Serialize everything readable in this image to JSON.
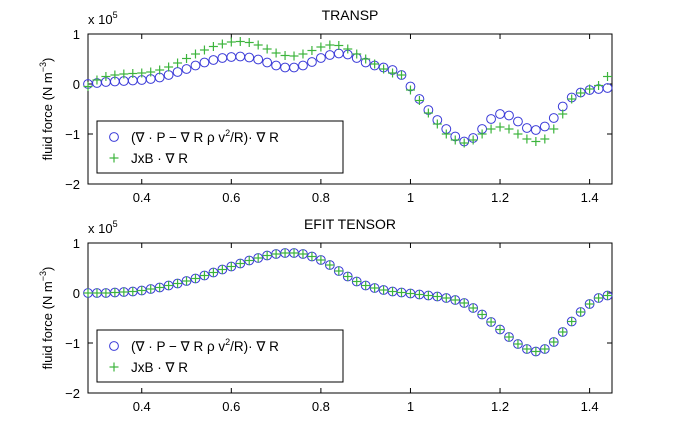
{
  "colors": {
    "circle": "#3a3ad8",
    "plus": "#3cb43c",
    "axis": "#000000",
    "background": "#ffffff"
  },
  "chart_data": [
    {
      "type": "scatter",
      "title": "TRANSP",
      "xlabel": "",
      "ylabel": "fluid force (N m",
      "ylabel_sup": "−3",
      "ylabel_close": ")",
      "scale_label": "x 10",
      "scale_exp": "5",
      "xlim": [
        0.28,
        1.45
      ],
      "ylim": [
        -2,
        1
      ],
      "xticks": [
        0.4,
        0.6,
        0.8,
        1,
        1.2,
        1.4
      ],
      "xtick_labels": [
        "0.4",
        "0.6",
        "0.8",
        "1",
        "1.2",
        "1.4"
      ],
      "yticks": [
        1,
        0,
        -1,
        -2
      ],
      "ytick_labels": [
        "1",
        "0",
        "−1",
        "−2"
      ],
      "legend_position": "bottom-left",
      "series": [
        {
          "name": "(∇ · P − ∇ R ρ v²/R)· ∇ R",
          "legend_main": "(∇ · P − ∇ R ρ v",
          "legend_sup": "2",
          "legend_tail": "/R)· ∇ R",
          "marker": "circle",
          "points": [
            [
              0.28,
              0.0
            ],
            [
              0.3,
              0.02
            ],
            [
              0.32,
              0.04
            ],
            [
              0.34,
              0.05
            ],
            [
              0.36,
              0.06
            ],
            [
              0.38,
              0.07
            ],
            [
              0.4,
              0.08
            ],
            [
              0.42,
              0.1
            ],
            [
              0.44,
              0.13
            ],
            [
              0.46,
              0.18
            ],
            [
              0.48,
              0.24
            ],
            [
              0.5,
              0.3
            ],
            [
              0.52,
              0.37
            ],
            [
              0.54,
              0.43
            ],
            [
              0.56,
              0.48
            ],
            [
              0.58,
              0.52
            ],
            [
              0.6,
              0.54
            ],
            [
              0.62,
              0.55
            ],
            [
              0.64,
              0.53
            ],
            [
              0.66,
              0.49
            ],
            [
              0.68,
              0.43
            ],
            [
              0.7,
              0.37
            ],
            [
              0.72,
              0.33
            ],
            [
              0.74,
              0.33
            ],
            [
              0.76,
              0.37
            ],
            [
              0.78,
              0.44
            ],
            [
              0.8,
              0.52
            ],
            [
              0.82,
              0.58
            ],
            [
              0.84,
              0.61
            ],
            [
              0.86,
              0.59
            ],
            [
              0.88,
              0.52
            ],
            [
              0.9,
              0.43
            ],
            [
              0.92,
              0.37
            ],
            [
              0.94,
              0.33
            ],
            [
              0.96,
              0.28
            ],
            [
              0.98,
              0.18
            ],
            [
              1.0,
              -0.05
            ],
            [
              1.02,
              -0.3
            ],
            [
              1.04,
              -0.52
            ],
            [
              1.06,
              -0.72
            ],
            [
              1.08,
              -0.9
            ],
            [
              1.1,
              -1.05
            ],
            [
              1.12,
              -1.15
            ],
            [
              1.14,
              -1.08
            ],
            [
              1.16,
              -0.9
            ],
            [
              1.18,
              -0.7
            ],
            [
              1.2,
              -0.6
            ],
            [
              1.22,
              -0.63
            ],
            [
              1.24,
              -0.75
            ],
            [
              1.26,
              -0.88
            ],
            [
              1.28,
              -0.92
            ],
            [
              1.3,
              -0.85
            ],
            [
              1.32,
              -0.68
            ],
            [
              1.34,
              -0.45
            ],
            [
              1.36,
              -0.27
            ],
            [
              1.38,
              -0.17
            ],
            [
              1.4,
              -0.12
            ],
            [
              1.42,
              -0.1
            ],
            [
              1.44,
              -0.08
            ]
          ]
        },
        {
          "name": "JxB · ∇ R",
          "legend_main": "JxB · ∇ R",
          "legend_sup": "",
          "legend_tail": "",
          "marker": "plus",
          "points": [
            [
              0.28,
              -0.05
            ],
            [
              0.3,
              0.08
            ],
            [
              0.32,
              0.15
            ],
            [
              0.34,
              0.18
            ],
            [
              0.36,
              0.2
            ],
            [
              0.38,
              0.21
            ],
            [
              0.4,
              0.22
            ],
            [
              0.42,
              0.24
            ],
            [
              0.44,
              0.28
            ],
            [
              0.46,
              0.34
            ],
            [
              0.48,
              0.42
            ],
            [
              0.5,
              0.51
            ],
            [
              0.52,
              0.6
            ],
            [
              0.54,
              0.68
            ],
            [
              0.56,
              0.75
            ],
            [
              0.58,
              0.8
            ],
            [
              0.6,
              0.84
            ],
            [
              0.62,
              0.85
            ],
            [
              0.64,
              0.83
            ],
            [
              0.66,
              0.78
            ],
            [
              0.68,
              0.7
            ],
            [
              0.7,
              0.62
            ],
            [
              0.72,
              0.57
            ],
            [
              0.74,
              0.56
            ],
            [
              0.76,
              0.6
            ],
            [
              0.78,
              0.67
            ],
            [
              0.8,
              0.74
            ],
            [
              0.82,
              0.78
            ],
            [
              0.84,
              0.77
            ],
            [
              0.86,
              0.7
            ],
            [
              0.88,
              0.6
            ],
            [
              0.9,
              0.5
            ],
            [
              0.92,
              0.4
            ],
            [
              0.94,
              0.3
            ],
            [
              0.96,
              0.22
            ],
            [
              0.98,
              0.18
            ],
            [
              1.0,
              -0.12
            ],
            [
              1.02,
              -0.33
            ],
            [
              1.04,
              -0.58
            ],
            [
              1.06,
              -0.8
            ],
            [
              1.08,
              -1.0
            ],
            [
              1.1,
              -1.12
            ],
            [
              1.12,
              -1.18
            ],
            [
              1.14,
              -1.12
            ],
            [
              1.16,
              -1.0
            ],
            [
              1.18,
              -0.9
            ],
            [
              1.2,
              -0.86
            ],
            [
              1.22,
              -0.9
            ],
            [
              1.24,
              -1.0
            ],
            [
              1.26,
              -1.1
            ],
            [
              1.28,
              -1.15
            ],
            [
              1.3,
              -1.1
            ],
            [
              1.32,
              -0.9
            ],
            [
              1.34,
              -0.6
            ],
            [
              1.36,
              -0.3
            ],
            [
              1.38,
              -0.18
            ],
            [
              1.4,
              -0.1
            ],
            [
              1.42,
              -0.03
            ],
            [
              1.44,
              0.15
            ]
          ]
        }
      ]
    },
    {
      "type": "scatter",
      "title": "EFIT TENSOR",
      "xlabel": "",
      "ylabel": "fluid force (N m",
      "ylabel_sup": "−3",
      "ylabel_close": ")",
      "scale_label": "x 10",
      "scale_exp": "5",
      "xlim": [
        0.28,
        1.45
      ],
      "ylim": [
        -2,
        1
      ],
      "xticks": [
        0.4,
        0.6,
        0.8,
        1,
        1.2,
        1.4
      ],
      "xtick_labels": [
        "0.4",
        "0.6",
        "0.8",
        "1",
        "1.2",
        "1.4"
      ],
      "yticks": [
        1,
        0,
        -1,
        -2
      ],
      "ytick_labels": [
        "1",
        "0",
        "−1",
        "−2"
      ],
      "legend_position": "bottom-left",
      "series": [
        {
          "name": "(∇ · P − ∇ R ρ v²/R)· ∇ R",
          "legend_main": "(∇ · P − ∇ R ρ v",
          "legend_sup": "2",
          "legend_tail": "/R)· ∇ R",
          "marker": "circle",
          "points": [
            [
              0.28,
              0.0
            ],
            [
              0.3,
              0.0
            ],
            [
              0.32,
              0.0
            ],
            [
              0.34,
              0.01
            ],
            [
              0.36,
              0.02
            ],
            [
              0.38,
              0.03
            ],
            [
              0.4,
              0.05
            ],
            [
              0.42,
              0.08
            ],
            [
              0.44,
              0.11
            ],
            [
              0.46,
              0.15
            ],
            [
              0.48,
              0.19
            ],
            [
              0.5,
              0.24
            ],
            [
              0.52,
              0.29
            ],
            [
              0.54,
              0.35
            ],
            [
              0.56,
              0.41
            ],
            [
              0.58,
              0.47
            ],
            [
              0.6,
              0.53
            ],
            [
              0.62,
              0.59
            ],
            [
              0.64,
              0.65
            ],
            [
              0.66,
              0.7
            ],
            [
              0.68,
              0.75
            ],
            [
              0.7,
              0.78
            ],
            [
              0.72,
              0.8
            ],
            [
              0.74,
              0.8
            ],
            [
              0.76,
              0.78
            ],
            [
              0.78,
              0.73
            ],
            [
              0.8,
              0.66
            ],
            [
              0.82,
              0.56
            ],
            [
              0.84,
              0.44
            ],
            [
              0.86,
              0.33
            ],
            [
              0.88,
              0.23
            ],
            [
              0.9,
              0.15
            ],
            [
              0.92,
              0.1
            ],
            [
              0.94,
              0.06
            ],
            [
              0.96,
              0.03
            ],
            [
              0.98,
              0.01
            ],
            [
              1.0,
              -0.01
            ],
            [
              1.02,
              -0.03
            ],
            [
              1.04,
              -0.05
            ],
            [
              1.06,
              -0.07
            ],
            [
              1.08,
              -0.1
            ],
            [
              1.1,
              -0.14
            ],
            [
              1.12,
              -0.2
            ],
            [
              1.14,
              -0.3
            ],
            [
              1.16,
              -0.43
            ],
            [
              1.18,
              -0.58
            ],
            [
              1.2,
              -0.73
            ],
            [
              1.22,
              -0.88
            ],
            [
              1.24,
              -1.02
            ],
            [
              1.26,
              -1.12
            ],
            [
              1.28,
              -1.17
            ],
            [
              1.3,
              -1.12
            ],
            [
              1.32,
              -0.98
            ],
            [
              1.34,
              -0.78
            ],
            [
              1.36,
              -0.57
            ],
            [
              1.38,
              -0.38
            ],
            [
              1.4,
              -0.22
            ],
            [
              1.42,
              -0.1
            ],
            [
              1.44,
              -0.05
            ]
          ]
        },
        {
          "name": "JxB · ∇ R",
          "legend_main": "JxB · ∇ R",
          "legend_sup": "",
          "legend_tail": "",
          "marker": "plus",
          "points": [
            [
              0.28,
              0.0
            ],
            [
              0.3,
              0.0
            ],
            [
              0.32,
              0.0
            ],
            [
              0.34,
              0.01
            ],
            [
              0.36,
              0.02
            ],
            [
              0.38,
              0.03
            ],
            [
              0.4,
              0.05
            ],
            [
              0.42,
              0.08
            ],
            [
              0.44,
              0.11
            ],
            [
              0.46,
              0.15
            ],
            [
              0.48,
              0.19
            ],
            [
              0.5,
              0.24
            ],
            [
              0.52,
              0.29
            ],
            [
              0.54,
              0.35
            ],
            [
              0.56,
              0.41
            ],
            [
              0.58,
              0.47
            ],
            [
              0.6,
              0.53
            ],
            [
              0.62,
              0.59
            ],
            [
              0.64,
              0.65
            ],
            [
              0.66,
              0.7
            ],
            [
              0.68,
              0.75
            ],
            [
              0.7,
              0.78
            ],
            [
              0.72,
              0.8
            ],
            [
              0.74,
              0.8
            ],
            [
              0.76,
              0.78
            ],
            [
              0.78,
              0.73
            ],
            [
              0.8,
              0.66
            ],
            [
              0.82,
              0.56
            ],
            [
              0.84,
              0.44
            ],
            [
              0.86,
              0.33
            ],
            [
              0.88,
              0.23
            ],
            [
              0.9,
              0.15
            ],
            [
              0.92,
              0.1
            ],
            [
              0.94,
              0.06
            ],
            [
              0.96,
              0.03
            ],
            [
              0.98,
              0.01
            ],
            [
              1.0,
              -0.01
            ],
            [
              1.02,
              -0.03
            ],
            [
              1.04,
              -0.05
            ],
            [
              1.06,
              -0.07
            ],
            [
              1.08,
              -0.1
            ],
            [
              1.1,
              -0.14
            ],
            [
              1.12,
              -0.2
            ],
            [
              1.14,
              -0.3
            ],
            [
              1.16,
              -0.43
            ],
            [
              1.18,
              -0.58
            ],
            [
              1.2,
              -0.73
            ],
            [
              1.22,
              -0.88
            ],
            [
              1.24,
              -1.02
            ],
            [
              1.26,
              -1.12
            ],
            [
              1.28,
              -1.17
            ],
            [
              1.3,
              -1.12
            ],
            [
              1.32,
              -0.98
            ],
            [
              1.34,
              -0.78
            ],
            [
              1.36,
              -0.57
            ],
            [
              1.38,
              -0.38
            ],
            [
              1.4,
              -0.22
            ],
            [
              1.42,
              -0.1
            ],
            [
              1.44,
              -0.05
            ]
          ]
        }
      ]
    }
  ]
}
